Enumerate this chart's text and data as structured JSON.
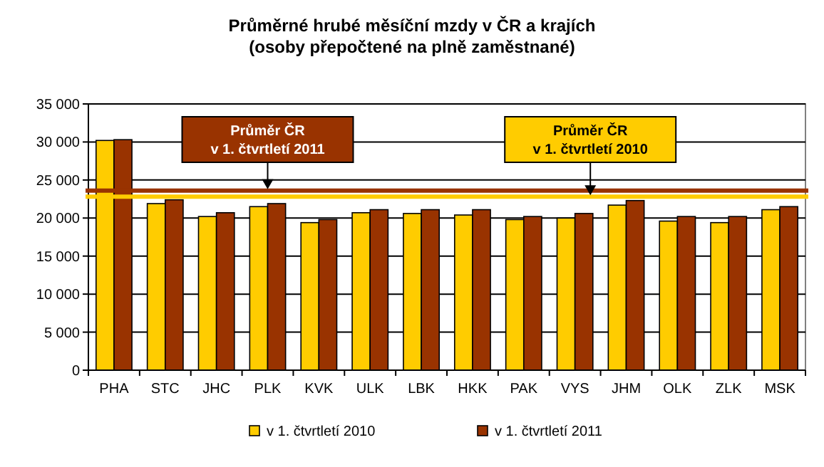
{
  "chart_data": {
    "type": "bar",
    "title": "Průměrné hrubé měsíční mzdy v ČR a krajích\n(osoby přepočtené na plně zaměstnané)",
    "categories": [
      "PHA",
      "STC",
      "JHC",
      "PLK",
      "KVK",
      "ULK",
      "LBK",
      "HKK",
      "PAK",
      "VYS",
      "JHM",
      "OLK",
      "ZLK",
      "MSK"
    ],
    "series": [
      {
        "name": "v 1. čtvrtletí 2010",
        "color": "#ffcc00",
        "values": [
          30200,
          21900,
          20200,
          21500,
          19400,
          20700,
          20600,
          20400,
          19800,
          20000,
          21700,
          19600,
          19400,
          21100
        ]
      },
      {
        "name": "v 1. čtvrtletí 2011",
        "color": "#993300",
        "values": [
          30300,
          22400,
          20700,
          21900,
          19800,
          21100,
          21100,
          21100,
          20200,
          20600,
          22300,
          20200,
          20200,
          21500
        ]
      }
    ],
    "ylim": [
      0,
      35000
    ],
    "yticks": [
      {
        "value": 0,
        "label": "0"
      },
      {
        "value": 5000,
        "label": "5 000"
      },
      {
        "value": 10000,
        "label": "10 000"
      },
      {
        "value": 15000,
        "label": "15 000"
      },
      {
        "value": 20000,
        "label": "20 000"
      },
      {
        "value": 25000,
        "label": "25 000"
      },
      {
        "value": 30000,
        "label": "30 000"
      },
      {
        "value": 35000,
        "label": "35 000"
      }
    ],
    "grid": "y",
    "legend": "bottom",
    "ref_lines": [
      {
        "axis": "y",
        "value": 23600,
        "label": "Průměr ČR\nv 1. čtvrtletí 2011",
        "color": "#993300"
      },
      {
        "axis": "y",
        "value": 22800,
        "label": "Průměr ČR\nv 1. čtvrtletí 2010",
        "color": "#ffcc00"
      }
    ]
  }
}
